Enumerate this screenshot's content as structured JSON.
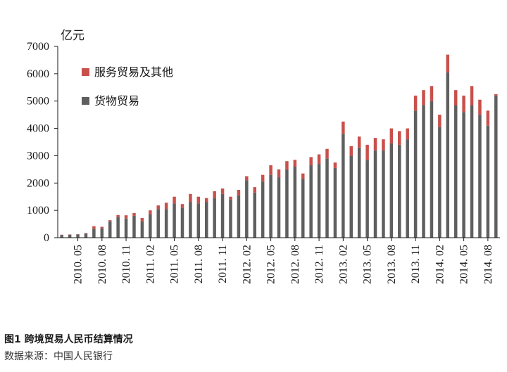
{
  "caption": "图1 跨境贸易人民币结算情况",
  "source": "数据来源：中国人民银行",
  "colors": {
    "goods": "#5f5f5f",
    "services": "#c8504b",
    "axis": "#1a1a1a"
  },
  "chart_data": {
    "type": "bar",
    "stacked": true,
    "unit_label": "亿元",
    "ylim": [
      0,
      7000
    ],
    "yticks": [
      0,
      1000,
      2000,
      3000,
      4000,
      5000,
      6000,
      7000
    ],
    "grid": false,
    "legend_position": "top-left",
    "xtick_labels": [
      "2010. 05",
      "2010. 08",
      "2010. 11",
      "2011. 02",
      "2011. 05",
      "2011. 08",
      "2011. 11",
      "2012. 02",
      "2012. 05",
      "2012. 08",
      "2012. 11",
      "2013. 02",
      "2013. 05",
      "2013. 08",
      "2013. 11",
      "2014. 02",
      "2014. 05",
      "2014. 08"
    ],
    "categories": [
      "2010.03",
      "2010.04",
      "2010.05",
      "2010.06",
      "2010.07",
      "2010.08",
      "2010.09",
      "2010.10",
      "2010.11",
      "2010.12",
      "2011.01",
      "2011.02",
      "2011.03",
      "2011.04",
      "2011.05",
      "2011.06",
      "2011.07",
      "2011.08",
      "2011.09",
      "2011.10",
      "2011.11",
      "2011.12",
      "2012.01",
      "2012.02",
      "2012.03",
      "2012.04",
      "2012.05",
      "2012.06",
      "2012.07",
      "2012.08",
      "2012.09",
      "2012.10",
      "2012.11",
      "2012.12",
      "2013.01",
      "2013.02",
      "2013.03",
      "2013.04",
      "2013.05",
      "2013.06",
      "2013.07",
      "2013.08",
      "2013.09",
      "2013.10",
      "2013.11",
      "2013.12",
      "2014.01",
      "2014.02",
      "2014.03",
      "2014.04",
      "2014.05",
      "2014.06",
      "2014.07",
      "2014.08",
      "2014.09"
    ],
    "series": [
      {
        "name": "货物贸易",
        "values": [
          100,
          110,
          120,
          150,
          330,
          350,
          600,
          750,
          700,
          800,
          600,
          850,
          1050,
          1050,
          1250,
          1100,
          1300,
          1250,
          1300,
          1450,
          1600,
          1400,
          1550,
          2100,
          1650,
          2050,
          2300,
          2200,
          2500,
          2600,
          2150,
          2650,
          2700,
          2900,
          2550,
          3800,
          3000,
          3300,
          2850,
          3200,
          3200,
          3450,
          3400,
          3600,
          4650,
          4850,
          5000,
          4050,
          6050,
          4850,
          4600,
          4850,
          4500,
          4100,
          5200
        ]
      },
      {
        "name": "服务贸易及其他",
        "values": [
          10,
          10,
          10,
          20,
          90,
          50,
          40,
          80,
          120,
          100,
          120,
          150,
          130,
          230,
          250,
          130,
          300,
          250,
          150,
          250,
          200,
          100,
          200,
          150,
          200,
          250,
          350,
          300,
          300,
          250,
          200,
          300,
          350,
          350,
          200,
          450,
          350,
          400,
          550,
          450,
          400,
          550,
          500,
          400,
          550,
          550,
          550,
          450,
          650,
          550,
          600,
          700,
          550,
          550,
          50
        ]
      }
    ]
  }
}
